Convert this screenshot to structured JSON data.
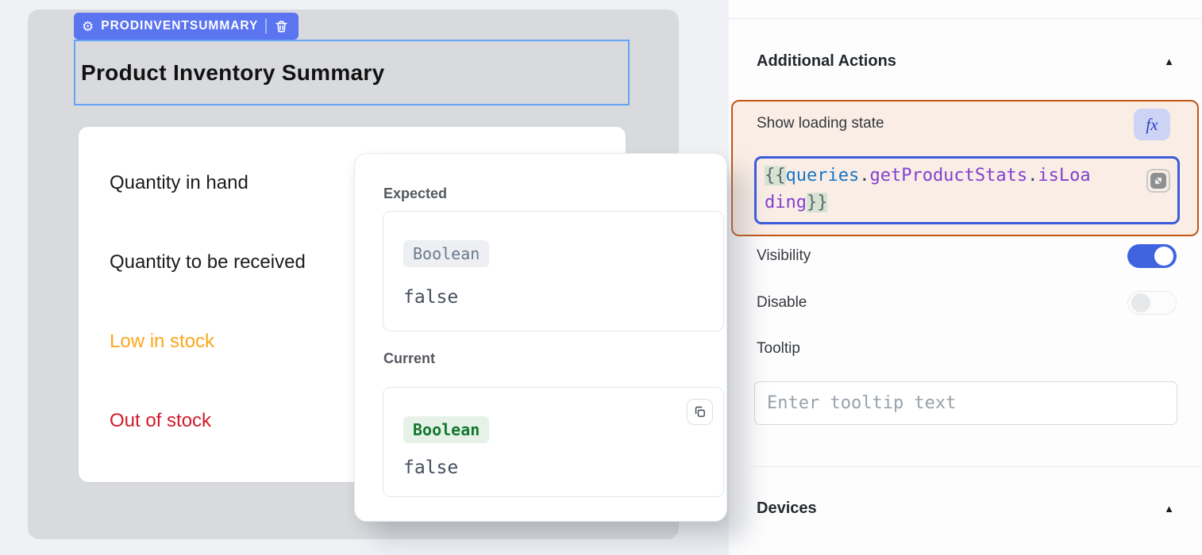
{
  "canvas": {
    "widget_tag": {
      "name": "PRODINVENTSUMMARY",
      "gear_icon": "gear",
      "trash_icon": "trash"
    },
    "title": "Product Inventory Summary",
    "list_items": [
      {
        "label": "Quantity in hand",
        "color": "#1b1b1b"
      },
      {
        "label": "Quantity to be received",
        "color": "#1b1b1b"
      },
      {
        "label": "Low in stock",
        "color": "#FBA71B"
      },
      {
        "label": "Out of stock",
        "color": "#D11A2B"
      }
    ]
  },
  "popover": {
    "expected": {
      "label": "Expected",
      "type": "Boolean",
      "value": "false"
    },
    "current": {
      "label": "Current",
      "type": "Boolean",
      "value": "false",
      "copy_icon": "copy"
    }
  },
  "panel": {
    "additional_actions_header": "Additional Actions",
    "devices_header": "Devices",
    "collapse_indicator": "▲",
    "loading": {
      "label": "Show loading state",
      "fx_label": "fx",
      "code_value": "{{queries.getProductStats.isLoading}}",
      "code_tokens_line1": [
        {
          "t": "{{",
          "c": "brace"
        },
        {
          "t": "queries",
          "c": "blue"
        },
        {
          "t": ".",
          "c": "dot"
        },
        {
          "t": "getProductStats",
          "c": "purple"
        },
        {
          "t": ".",
          "c": "dot"
        },
        {
          "t": "isLoa",
          "c": "purple"
        }
      ],
      "code_tokens_line2": [
        {
          "t": "ding",
          "c": "purple"
        },
        {
          "t": "}}",
          "c": "brace"
        }
      ],
      "expand_icon": "expand-diagonal"
    },
    "visibility": {
      "label": "Visibility",
      "on": true
    },
    "disable": {
      "label": "Disable",
      "on": false
    },
    "tooltip": {
      "label": "Tooltip",
      "placeholder": "Enter tooltip text"
    }
  },
  "colors": {
    "canvas_bg": "#EFF1F5",
    "widget_container_bg": "#D8DADD",
    "widget_tag_bg": "#5B74F0",
    "selection_border": "#62A4F5",
    "low_stock_text": "#FBA71B",
    "out_of_stock_text": "#D11A2B",
    "expected_chip_bg": "#EDEFF2",
    "expected_chip_text": "#6B7A8F",
    "current_chip_bg": "#E6F2E7",
    "current_chip_text": "#12782F",
    "highlight_border": "#C25512",
    "highlight_bg": "#FAEDE5",
    "fx_btn_bg": "#CDD3F4",
    "fx_btn_text": "#2B3EC5",
    "code_border": "#3A5CDC",
    "code_blue": "#1375C6",
    "code_purple": "#8140D0",
    "toggle_on": "#4064E0"
  }
}
